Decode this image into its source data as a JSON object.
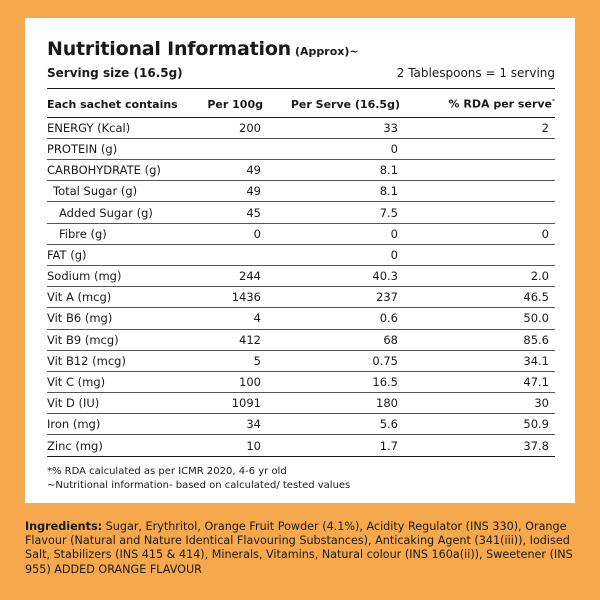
{
  "header": {
    "title": "Nutritional Information",
    "title_suffix": "(Approx)~",
    "serving_size": "Serving size (16.5g)",
    "serving_note": "2 Tablespoons = 1 serving"
  },
  "table": {
    "headers": {
      "col0": "Each sachet contains",
      "col1": "Per 100g",
      "col2": "Per Serve (16.5g)",
      "col3": "% RDA per serve",
      "col3_mark": "*"
    },
    "rows": [
      [
        "ENERGY (Kcal)",
        "200",
        "33",
        "2"
      ],
      [
        "PROTEIN (g)",
        "",
        "0",
        ""
      ],
      [
        "CARBOHYDRATE (g)",
        "49",
        "8.1",
        ""
      ],
      [
        "Total Sugar (g)",
        "49",
        "8.1",
        ""
      ],
      [
        "Added Sugar (g)",
        "45",
        "7.5",
        ""
      ],
      [
        "Fibre (g)",
        "0",
        "0",
        "0"
      ],
      [
        "FAT (g)",
        "",
        "0",
        ""
      ],
      [
        "Sodium (mg)",
        "244",
        "40.3",
        "2.0"
      ],
      [
        "Vit A (mcg)",
        "1436",
        "237",
        "46.5"
      ],
      [
        "Vit B6 (mg)",
        "4",
        "0.6",
        "50.0"
      ],
      [
        "Vit B9 (mcg)",
        "412",
        "68",
        "85.6"
      ],
      [
        "Vit B12 (mcg)",
        "5",
        "0.75",
        "34.1"
      ],
      [
        "Vit C (mg)",
        "100",
        "16.5",
        "47.1"
      ],
      [
        "Vit D (IU)",
        "1091",
        "180",
        "30"
      ],
      [
        "Iron (mg)",
        "34",
        "5.6",
        "50.9"
      ],
      [
        "Zinc (mg)",
        "10",
        "1.7",
        "37.8"
      ]
    ]
  },
  "notes": {
    "rda": "*% RDA calculated as per ICMR 2020, 4-6 yr old",
    "info": "~Nutritional information- based on calculated/ tested values"
  },
  "ingredients": {
    "label": "Ingredients:",
    "text": " Sugar, Erythritol, Orange Fruit Powder (4.1%), Acidity Regulator (INS 330), Orange Flavour (Natural and Nature Identical Flavouring Substances), Anticaking Agent (341(iii)), Iodised Salt, Stabilizers (INS 415 & 414), Minerals, Vitamins, Natural colour (INS 160a(ii)), Sweetener (INS 955) ADDED ORANGE FLAVOUR"
  },
  "colors": {
    "background": "#f6a94c",
    "card": "#ffffff",
    "text": "#1a1a1a"
  }
}
